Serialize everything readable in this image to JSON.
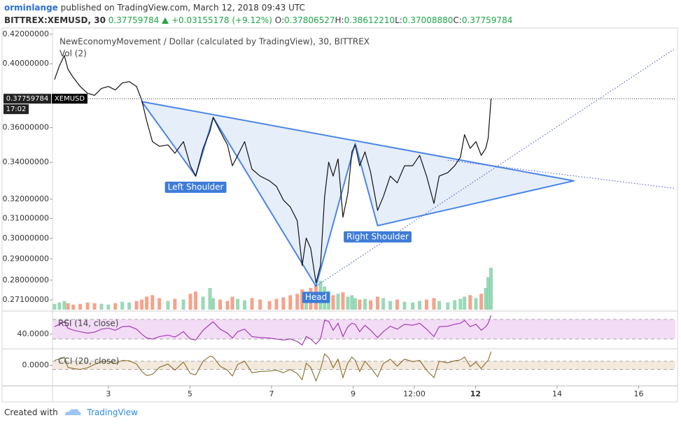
{
  "header": {
    "user": "orminlange",
    "published": "published on TradingView.com, March 12, 2018 09:43 UTC",
    "symbol": "BITTREX:XEMUSD, 30",
    "last": "0.37759784",
    "change": "+0.03155178 (+9.12%)",
    "ohlc": [
      {
        "key": "O:",
        "value": "0.37806527"
      },
      {
        "key": "H:",
        "value": "0.38612210"
      },
      {
        "key": "L:",
        "value": "0.37008880"
      },
      {
        "key": "C:",
        "value": "0.37759784"
      }
    ]
  },
  "chart_data": {
    "type": "line",
    "title": "NewEconomyMovement / Dollar (calculated by TradingView), 30, BITTREX",
    "x": [
      1.68,
      1.8,
      1.92,
      2.01,
      2.14,
      2.31,
      2.49,
      2.66,
      2.83,
      3.0,
      3.17,
      3.34,
      3.51,
      3.69,
      3.82,
      3.94,
      4.08,
      4.25,
      4.46,
      4.63,
      4.84,
      5.01,
      5.14,
      5.32,
      5.49,
      5.57,
      5.74,
      5.92,
      6.04,
      6.17,
      6.34,
      6.52,
      6.72,
      6.95,
      7.12,
      7.29,
      7.46,
      7.63,
      7.75,
      7.85,
      7.96,
      8.09,
      8.2,
      8.3,
      8.4,
      8.51,
      8.63,
      8.75,
      8.87,
      8.97,
      9.05,
      9.16,
      9.29,
      9.43,
      9.6,
      9.74,
      9.91,
      10.08,
      10.26,
      10.46,
      10.63,
      10.8,
      10.98,
      11.11,
      11.32,
      11.49,
      11.63,
      11.73,
      11.87,
      12.01,
      12.14,
      12.25,
      12.31,
      12.38
    ],
    "xlim": [
      1.63,
      16.9
    ],
    "xticks": [
      3,
      5,
      7,
      9,
      {
        "value": 10.5,
        "label": "12:00"
      },
      12,
      14,
      16
    ],
    "log_scale": true,
    "ylim": [
      0.2667,
      0.4243
    ],
    "yticks": [
      {
        "value": 0.42,
        "label": "0.42000000"
      },
      {
        "value": 0.4,
        "label": "0.40000000"
      },
      {
        "value": 0.36,
        "label": "0.36000000"
      },
      {
        "value": 0.34,
        "label": "0.34000000"
      },
      {
        "value": 0.32,
        "label": "0.32000000"
      },
      {
        "value": 0.31,
        "label": "0.31000000"
      },
      {
        "value": 0.3,
        "label": "0.30000000"
      },
      {
        "value": 0.29,
        "label": "0.29000000"
      },
      {
        "value": 0.28,
        "label": "0.28000000"
      },
      {
        "value": 0.271,
        "label": "0.27100000"
      }
    ],
    "series": [
      {
        "name": "XEMUSD",
        "color": "#111111",
        "values": [
          0.3897,
          0.3986,
          0.4055,
          0.3964,
          0.391,
          0.3853,
          0.381,
          0.3797,
          0.384,
          0.3853,
          0.3831,
          0.3875,
          0.3884,
          0.3853,
          0.3766,
          0.364,
          0.3518,
          0.3491,
          0.3499,
          0.3451,
          0.3518,
          0.3381,
          0.3324,
          0.3479,
          0.3579,
          0.3661,
          0.3579,
          0.3499,
          0.3381,
          0.3439,
          0.3518,
          0.3362,
          0.3324,
          0.3298,
          0.3268,
          0.3195,
          0.3159,
          0.3088,
          0.2868,
          0.3001,
          0.2951,
          0.2788,
          0.2868,
          0.3213,
          0.3401,
          0.3324,
          0.342,
          0.3106,
          0.3231,
          0.3459,
          0.3499,
          0.3381,
          0.3459,
          0.3343,
          0.3141,
          0.3213,
          0.3324,
          0.3287,
          0.3381,
          0.3381,
          0.3439,
          0.3324,
          0.3177,
          0.3324,
          0.3343,
          0.3381,
          0.3428,
          0.3559,
          0.3479,
          0.3518,
          0.3439,
          0.3479,
          0.3539,
          0.37759784
        ]
      }
    ],
    "last_time": "17:02",
    "volume": {
      "name": "Vol (2)",
      "up_color": "#7fcfa6",
      "down_color": "#f28c6e",
      "values": [
        8,
        10,
        12,
        9,
        7,
        8,
        10,
        9,
        8,
        7,
        9,
        11,
        10,
        12,
        14,
        18,
        20,
        16,
        12,
        15,
        14,
        22,
        25,
        18,
        30,
        16,
        14,
        12,
        18,
        15,
        13,
        16,
        14,
        12,
        15,
        17,
        20,
        22,
        28,
        25,
        30,
        35,
        40,
        32,
        26,
        20,
        22,
        24,
        18,
        20,
        16,
        14,
        15,
        13,
        18,
        16,
        12,
        14,
        11,
        10,
        12,
        14,
        16,
        12,
        10,
        13,
        15,
        18,
        20,
        16,
        22,
        30,
        45,
        58
      ]
    },
    "pattern": {
      "color": "#4a86e8",
      "fill": "#dde8f8",
      "label_color": "#3d7bd8",
      "x": [
        3.82,
        5.14,
        5.57,
        8.09,
        9.05,
        9.6,
        14.41
      ],
      "y": [
        0.3758,
        0.3324,
        0.3661,
        0.2772,
        0.3507,
        0.3063,
        0.3298
      ],
      "labels": [
        null,
        "Left Shoulder",
        null,
        "Head",
        null,
        "Right Shoulder",
        null
      ]
    },
    "trendlines": {
      "color": "#3b4fd8",
      "lines": [
        {
          "x": [
            8.09,
            16.89
          ],
          "y": [
            0.2772,
            0.4101
          ]
        },
        {
          "x": [
            11.32,
            16.89
          ],
          "y": [
            0.3412,
            0.3257
          ]
        }
      ]
    },
    "rsi": {
      "name": "RSI (14, close)",
      "color": "#9b2fae",
      "band_color": "#f3dcf6",
      "ylim": [
        13,
        84
      ],
      "yticks": [
        {
          "value": 40,
          "label": "40.0000"
        }
      ],
      "bands": [
        30,
        70
      ],
      "values": [
        55,
        60,
        65,
        52,
        48,
        45,
        42,
        44,
        50,
        52,
        48,
        55,
        56,
        50,
        40,
        32,
        30,
        35,
        38,
        34,
        45,
        30,
        28,
        48,
        60,
        65,
        50,
        42,
        32,
        45,
        50,
        35,
        33,
        32,
        30,
        28,
        30,
        25,
        18,
        35,
        30,
        20,
        30,
        68,
        66,
        48,
        62,
        35,
        55,
        62,
        60,
        45,
        58,
        48,
        33,
        45,
        56,
        50,
        60,
        58,
        62,
        50,
        35,
        55,
        56,
        60,
        62,
        68,
        55,
        60,
        48,
        55,
        62,
        78
      ]
    },
    "cci": {
      "name": "CCI (20, close)",
      "color": "#8b6a2b",
      "band_color": "#f3e9dc",
      "ylim": [
        -483,
        367
      ],
      "yticks": [
        {
          "value": 0,
          "label": "0.0000"
        }
      ],
      "bands": [
        -100,
        100
      ],
      "values": [
        120,
        150,
        200,
        -50,
        -80,
        -100,
        -60,
        20,
        90,
        100,
        40,
        120,
        110,
        30,
        -150,
        -250,
        -220,
        -50,
        30,
        -120,
        80,
        -200,
        -230,
        100,
        220,
        200,
        -20,
        -120,
        -260,
        20,
        100,
        -180,
        -150,
        -140,
        -120,
        -180,
        -100,
        -200,
        -350,
        50,
        -50,
        -380,
        -100,
        280,
        180,
        -60,
        150,
        -300,
        60,
        200,
        120,
        -150,
        100,
        -60,
        -280,
        40,
        150,
        -20,
        150,
        90,
        120,
        -120,
        -300,
        100,
        60,
        110,
        130,
        200,
        -30,
        80,
        -80,
        60,
        120,
        330
      ]
    }
  },
  "footer": {
    "created": "Created with",
    "brand": "TradingView"
  }
}
